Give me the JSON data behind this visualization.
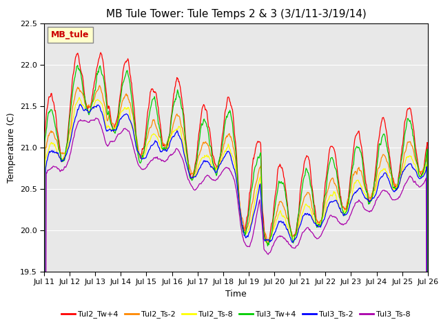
{
  "title": "MB Tule Tower: Tule Temps 2 & 3 (3/1/11-3/19/14)",
  "xlabel": "Time",
  "ylabel": "Temperature (C)",
  "ylim": [
    19.5,
    22.5
  ],
  "xlim": [
    0,
    15
  ],
  "x_tick_labels": [
    "Jul 11",
    "Jul 12",
    "Jul 13",
    "Jul 14",
    "Jul 15",
    "Jul 16",
    "Jul 17",
    "Jul 18",
    "Jul 19",
    "Jul 20",
    "Jul 21",
    "Jul 22",
    "Jul 23",
    "Jul 24",
    "Jul 25",
    "Jul 26"
  ],
  "legend_label": "MB_tule",
  "series_colors": [
    "#ff0000",
    "#ff8800",
    "#ffff00",
    "#00cc00",
    "#0000ff",
    "#aa00aa"
  ],
  "series_names": [
    "Tul2_Tw+4",
    "Tul2_Ts-2",
    "Tul2_Ts-8",
    "Tul3_Tw+4",
    "Tul3_Ts-2",
    "Tul3_Ts-8"
  ],
  "plot_bg_color": "#e8e8e8",
  "grid_color": "#ffffff",
  "title_fontsize": 11,
  "axis_fontsize": 9,
  "tick_fontsize": 8,
  "legend_label_color": "#cc0000",
  "legend_bg": "#ffffcc",
  "yticks": [
    19.5,
    20.0,
    20.5,
    21.0,
    21.5,
    22.0,
    22.5
  ]
}
